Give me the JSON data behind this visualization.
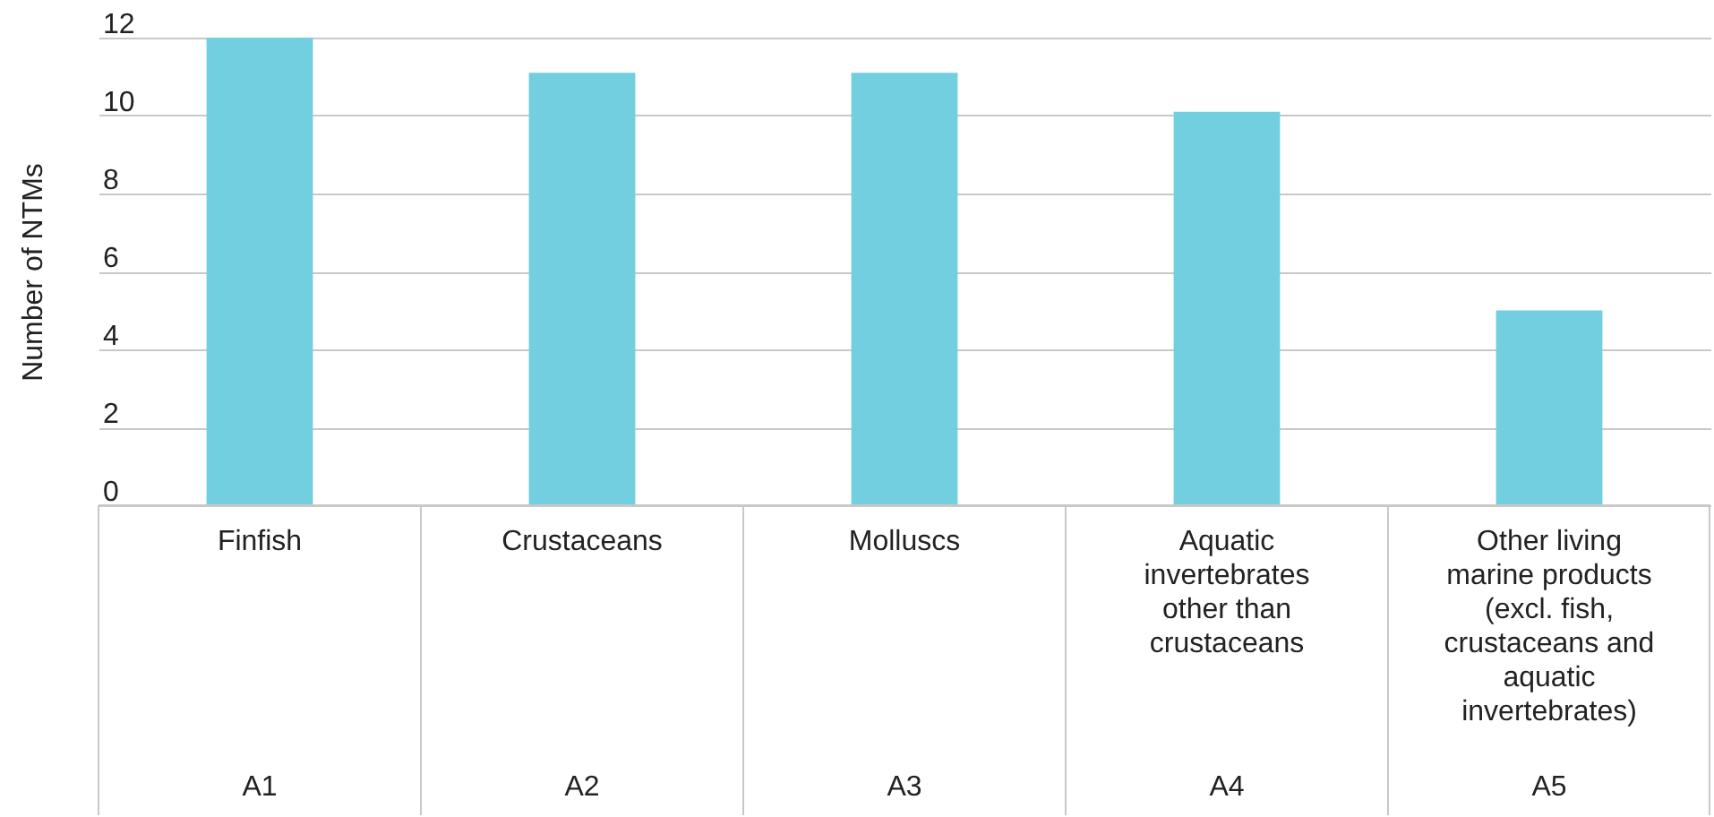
{
  "chart_data": {
    "type": "bar",
    "ylabel": "Number of NTMs",
    "categories": [
      "Finfish",
      "Crustaceans",
      "Molluscs",
      "Aquatic invertebrates other than crustaceans",
      "Other living marine products (excl. fish, crustaceans and aquatic invertebrates)"
    ],
    "values": [
      12,
      11.1,
      11.1,
      10.1,
      5
    ],
    "color": "#72cfe0",
    "ylim": [
      0,
      12
    ],
    "yticks": [
      0,
      2,
      4,
      6,
      8,
      10,
      12
    ],
    "grid": true,
    "annotations": [
      "A1",
      "A2",
      "A3",
      "A4",
      "A5"
    ]
  }
}
